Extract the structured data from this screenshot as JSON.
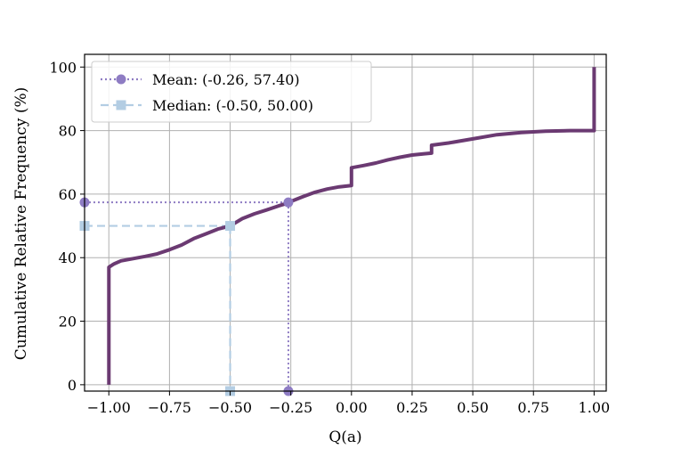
{
  "chart_data": {
    "type": "line",
    "title": "",
    "xlabel": "Q(a)",
    "ylabel": "Cumulative Relative Frequency (%)",
    "xlim": [
      -1.1,
      1.05
    ],
    "ylim": [
      -2,
      104
    ],
    "xticks": [
      -1.0,
      -0.75,
      -0.5,
      -0.25,
      0.0,
      0.25,
      0.5,
      0.75,
      1.0
    ],
    "xtick_labels": [
      "−1.00",
      "−0.75",
      "−0.50",
      "−0.25",
      "0.00",
      "0.25",
      "0.50",
      "0.75",
      "1.00"
    ],
    "yticks": [
      0,
      20,
      40,
      60,
      80,
      100
    ],
    "ytick_labels": [
      "0",
      "20",
      "40",
      "60",
      "80",
      "100"
    ],
    "grid": true,
    "legend_position": "top-left",
    "colors": {
      "cdf": "#6b3a72",
      "mean": "#8e7cc3",
      "median": "#b3cde3"
    },
    "series": [
      {
        "kind": "cdf",
        "x": [
          -1.0,
          -1.0,
          -1.0,
          -0.98,
          -0.95,
          -0.9,
          -0.85,
          -0.8,
          -0.75,
          -0.7,
          -0.65,
          -0.6,
          -0.55,
          -0.5,
          -0.45,
          -0.4,
          -0.35,
          -0.3,
          -0.27,
          -0.26,
          -0.2,
          -0.15,
          -0.1,
          -0.05,
          0.0,
          0.0,
          0.05,
          0.1,
          0.15,
          0.2,
          0.25,
          0.3,
          0.33,
          0.33,
          0.4,
          0.5,
          0.6,
          0.7,
          0.8,
          0.9,
          1.0,
          1.0
        ],
        "y": [
          0,
          36,
          37,
          38,
          39,
          39.7,
          40.4,
          41.2,
          42.5,
          44,
          46,
          47.5,
          49,
          50,
          52.3,
          53.8,
          55,
          56.3,
          57,
          57.4,
          59.2,
          60.6,
          61.6,
          62.3,
          62.7,
          68.3,
          69,
          69.8,
          70.8,
          71.6,
          72.3,
          72.7,
          72.9,
          75.4,
          76.1,
          77.4,
          78.7,
          79.4,
          79.8,
          80,
          80,
          100
        ]
      }
    ],
    "markers": [
      {
        "kind": "mean",
        "label": "Mean: (-0.26, 57.40)",
        "x": -0.26,
        "y": 57.4
      },
      {
        "kind": "median",
        "label": "Median: (-0.50, 50.00)",
        "x": -0.5,
        "y": 50.0
      }
    ]
  }
}
